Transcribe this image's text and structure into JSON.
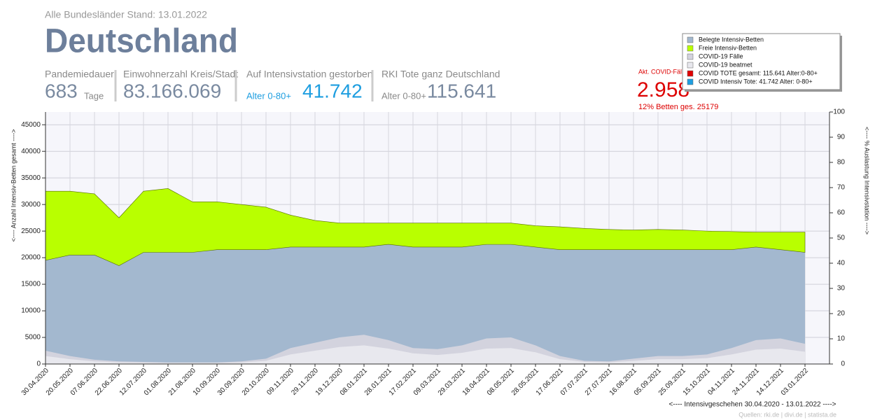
{
  "header": {
    "subtitle": "Alle Bundesländer Stand: 13.01.2022",
    "title": "Deutschland"
  },
  "stats": [
    {
      "label": "Pandemiedauer",
      "value": "683",
      "unit": "Tage"
    },
    {
      "label": "Einwohnerzahl Kreis/Stadt",
      "value": "83.166.069"
    },
    {
      "label": "Auf Intensivstation gestorben",
      "prefix": "Alter 0-80+",
      "value": "41.742"
    },
    {
      "label": "RKI Tote ganz Deutschland",
      "prefix": "Alter 0-80+",
      "value": "115.641"
    }
  ],
  "current": {
    "label": "Akt. COVID-Fälle",
    "value": "2.958",
    "note": "12% Betten ges. 25179"
  },
  "chart_data": {
    "type": "area",
    "xlabel": "<---- Intensivgeschehen 30.04.2020 - 13.01.2022 ---->",
    "ylabel": "<---- Anzahl Intensiv-Betten gesamt ---->",
    "y2label": "<---- % Auslastung Intensivstation ---->",
    "source": "Quellen: rki.de | divi.de | statista.de",
    "categories": [
      "30.04.2020",
      "20.05.2020",
      "07.06.2020",
      "22.06.2020",
      "12.07.2020",
      "01.08.2020",
      "21.08.2020",
      "10.09.2020",
      "30.09.2020",
      "20.10.2020",
      "09.11.2020",
      "29.11.2020",
      "19.12.2020",
      "08.01.2021",
      "28.01.2021",
      "17.02.2021",
      "09.03.2021",
      "29.03.2021",
      "18.04.2021",
      "08.05.2021",
      "28.05.2021",
      "17.06.2021",
      "07.07.2021",
      "27.07.2021",
      "16.08.2021",
      "05.09.2021",
      "25.09.2021",
      "15.10.2021",
      "04.11.2021",
      "24.11.2021",
      "14.12.2021",
      "03.01.2022"
    ],
    "series": [
      {
        "name": "Belegte Intensiv-Betten",
        "color": "#a3b8cf",
        "stack": "beds",
        "values": [
          19500,
          20500,
          20500,
          18500,
          21000,
          21000,
          21000,
          21500,
          21500,
          21500,
          22000,
          22000,
          22000,
          22000,
          22500,
          22000,
          22000,
          22000,
          22500,
          22500,
          22000,
          21500,
          21500,
          21500,
          21500,
          21500,
          21500,
          21500,
          21500,
          22000,
          21500,
          21000
        ]
      },
      {
        "name": "Freie Intensiv-Betten",
        "color": "#b9ff00",
        "stack": "beds",
        "values": [
          13000,
          12000,
          11500,
          9000,
          11500,
          12000,
          9500,
          9000,
          8500,
          8000,
          6000,
          5000,
          4500,
          4500,
          4000,
          4500,
          4500,
          4500,
          4000,
          4000,
          4000,
          4300,
          4000,
          3800,
          3700,
          3800,
          3700,
          3500,
          3400,
          2800,
          3300,
          3800
        ]
      },
      {
        "name": "COVID-19 Fälle",
        "color": "#d3d3de",
        "values": [
          2500,
          1500,
          800,
          500,
          400,
          300,
          300,
          300,
          500,
          1000,
          3000,
          4000,
          5000,
          5500,
          4500,
          3000,
          2800,
          3500,
          4800,
          5000,
          3500,
          1500,
          600,
          500,
          1000,
          1500,
          1500,
          1800,
          3000,
          4500,
          4800,
          3800
        ]
      },
      {
        "name": "COVID-19 beatmet",
        "color": "#e8e8ee",
        "values": [
          1500,
          900,
          500,
          300,
          250,
          200,
          200,
          200,
          300,
          600,
          1800,
          2500,
          3200,
          3500,
          2900,
          2000,
          1700,
          2100,
          2900,
          3000,
          2200,
          900,
          400,
          300,
          600,
          900,
          900,
          1100,
          1800,
          2700,
          2900,
          2300
        ]
      }
    ],
    "legend_extra": [
      {
        "name": "COVID TOTE gesamt: 115.641 Alter:0-80+",
        "color": "#e00000"
      },
      {
        "name": "COVID Intensiv Tote: 41.742 Alter: 0-80+",
        "color": "#1e9ee0"
      }
    ],
    "ylim": [
      0,
      47400
    ],
    "yticks": [
      0,
      5000,
      10000,
      15000,
      20000,
      25000,
      30000,
      35000,
      40000,
      45000
    ],
    "y2lim": [
      0,
      100
    ],
    "y2ticks": [
      0,
      10,
      20,
      30,
      40,
      50,
      60,
      70,
      80,
      90,
      100
    ],
    "grid": true,
    "legend": "top-right"
  }
}
